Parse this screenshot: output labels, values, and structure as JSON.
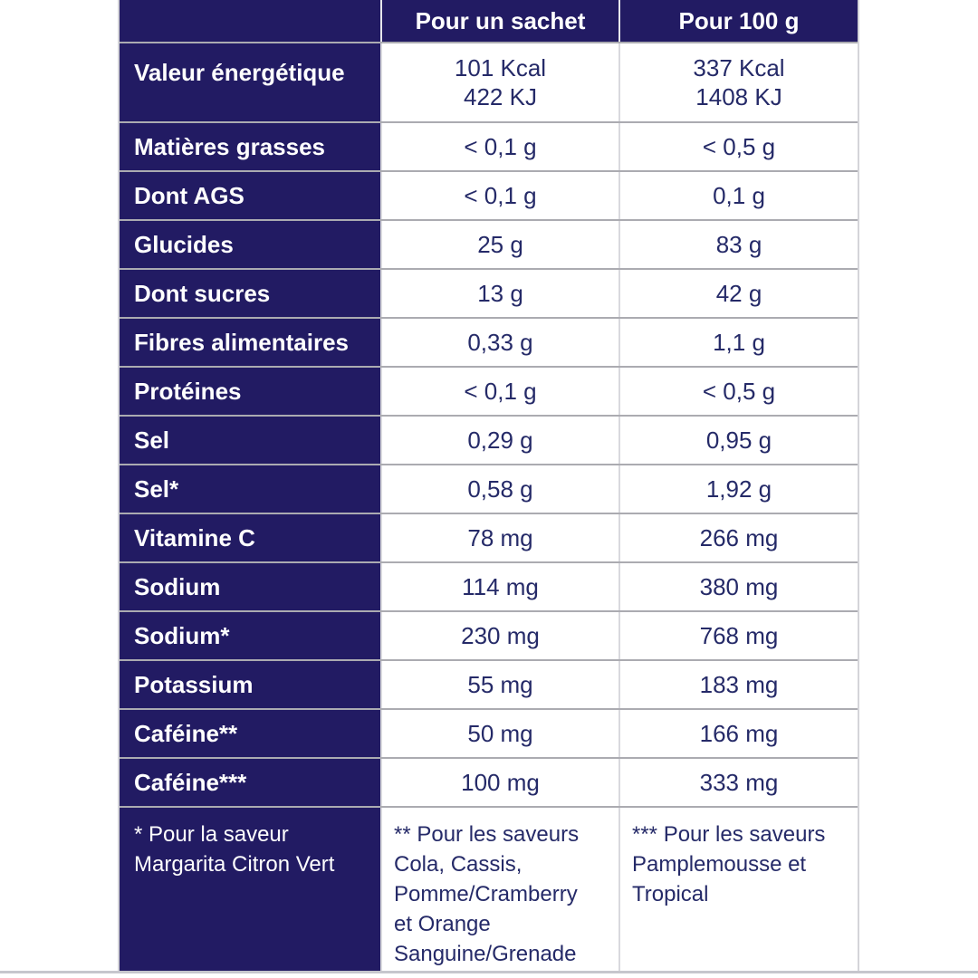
{
  "page": {
    "colors": {
      "header_background": "#221b63",
      "label_background": "#221b63",
      "header_text": "#ffffff",
      "value_text": "#252a68",
      "row_line": "#ababb1",
      "column_line": "#d9d9de",
      "bottom_rule": "#c6c6cd"
    }
  },
  "table": {
    "columns": [
      "",
      "Pour un sachet",
      "Pour 100 g"
    ],
    "rows": [
      {
        "label": "Valeur énergétique",
        "per_sachet": "101 Kcal\n422 KJ",
        "per_100g": "337 Kcal\n1408 KJ",
        "tall": true
      },
      {
        "label": "Matières grasses",
        "per_sachet": "< 0,1 g",
        "per_100g": "< 0,5 g"
      },
      {
        "label": "Dont AGS",
        "per_sachet": "< 0,1 g",
        "per_100g": "0,1 g"
      },
      {
        "label": "Glucides",
        "per_sachet": "25 g",
        "per_100g": "83 g"
      },
      {
        "label": "Dont sucres",
        "per_sachet": "13 g",
        "per_100g": "42 g"
      },
      {
        "label": "Fibres alimentaires",
        "per_sachet": "0,33 g",
        "per_100g": "1,1 g"
      },
      {
        "label": "Protéines",
        "per_sachet": "< 0,1 g",
        "per_100g": "< 0,5 g"
      },
      {
        "label": "Sel",
        "per_sachet": "0,29 g",
        "per_100g": "0,95 g"
      },
      {
        "label": "Sel*",
        "per_sachet": "0,58 g",
        "per_100g": "1,92 g"
      },
      {
        "label": "Vitamine C",
        "per_sachet": "78 mg",
        "per_100g": "266 mg"
      },
      {
        "label": "Sodium",
        "per_sachet": "114 mg",
        "per_100g": "380 mg"
      },
      {
        "label": "Sodium*",
        "per_sachet": "230 mg",
        "per_100g": "768 mg"
      },
      {
        "label": "Potassium",
        "per_sachet": "55 mg",
        "per_100g": "183 mg"
      },
      {
        "label": "Caféine**",
        "per_sachet": "50 mg",
        "per_100g": "166 mg"
      },
      {
        "label": "Caféine***",
        "per_sachet": "100 mg",
        "per_100g": "333 mg"
      }
    ],
    "footnotes": {
      "col1": "* Pour la saveur Margarita Citron Vert",
      "col2": "** Pour les saveurs Cola, Cassis, Pomme/Cramberry et Orange Sanguine/Grenade",
      "col3": "*** Pour les saveurs Pamplemousse et Tropical"
    }
  }
}
